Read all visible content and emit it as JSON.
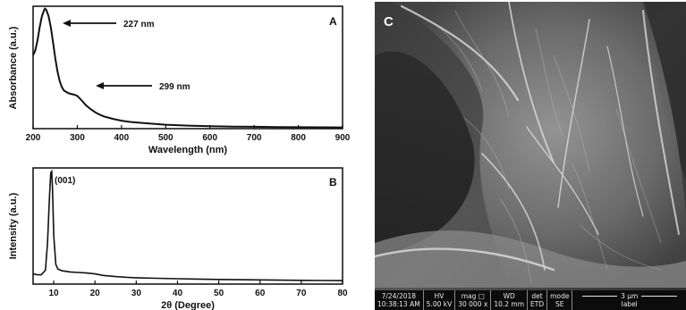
{
  "chart_data": [
    {
      "type": "line",
      "panel": "A",
      "xlabel": "Wavelength (nm)",
      "ylabel": "Absorbance (a.u.)",
      "xlim": [
        200,
        900
      ],
      "xticks": [
        200,
        300,
        400,
        500,
        600,
        700,
        800,
        900
      ],
      "yticks_shown": false,
      "series": [
        {
          "x": [
            200,
            205,
            210,
            215,
            220,
            225,
            227,
            230,
            235,
            240,
            245,
            250,
            255,
            260,
            265,
            270,
            275,
            280,
            285,
            290,
            295,
            299,
            305,
            310,
            320,
            330,
            340,
            350,
            360,
            380,
            400,
            420,
            450,
            500,
            550,
            600,
            650,
            700,
            750,
            800,
            850,
            900
          ],
          "y": [
            0.6,
            0.64,
            0.72,
            0.83,
            0.92,
            0.97,
            0.98,
            0.97,
            0.92,
            0.83,
            0.71,
            0.58,
            0.47,
            0.39,
            0.34,
            0.31,
            0.3,
            0.29,
            0.285,
            0.28,
            0.275,
            0.27,
            0.25,
            0.23,
            0.19,
            0.16,
            0.135,
            0.115,
            0.1,
            0.08,
            0.065,
            0.055,
            0.045,
            0.032,
            0.025,
            0.02,
            0.017,
            0.015,
            0.013,
            0.012,
            0.011,
            0.01
          ]
        }
      ],
      "annotations": [
        {
          "text": "227 nm",
          "x": 227
        },
        {
          "text": "299 nm",
          "x": 299
        }
      ]
    },
    {
      "type": "line",
      "panel": "B",
      "xlabel": "2θ (Degree)",
      "ylabel": "Intensity (a.u.)",
      "xlim": [
        5,
        80
      ],
      "xticks": [
        10,
        20,
        30,
        40,
        50,
        60,
        70,
        80
      ],
      "yticks_shown": false,
      "series": [
        {
          "x": [
            5,
            6,
            7,
            8,
            8.5,
            9,
            9.3,
            9.5,
            9.7,
            10,
            10.5,
            11,
            12,
            14,
            16,
            18,
            20,
            22,
            25,
            28,
            30,
            35,
            40,
            45,
            50,
            55,
            60,
            65,
            70,
            75,
            80
          ],
          "y": [
            0.09,
            0.08,
            0.08,
            0.12,
            0.35,
            0.78,
            0.96,
            0.97,
            0.82,
            0.42,
            0.17,
            0.13,
            0.115,
            0.105,
            0.1,
            0.095,
            0.088,
            0.075,
            0.065,
            0.058,
            0.055,
            0.05,
            0.046,
            0.043,
            0.04,
            0.038,
            0.036,
            0.034,
            0.032,
            0.031,
            0.03
          ]
        }
      ],
      "annotations": [
        {
          "text": "(001)",
          "x": 9.5
        }
      ]
    }
  ],
  "sem": {
    "label": "C",
    "info": {
      "date": "7/24/2018",
      "time": "10:38:13 AM",
      "hv_head": "HV",
      "hv": "5.00 kV",
      "mag_head": "mag □",
      "mag": "30 000 x",
      "wd_head": "WD",
      "wd": "10.2 mm",
      "det_head": "det",
      "det": "ETD",
      "mode_head": "mode",
      "mode": "SE",
      "scale": "3 μm",
      "label_text": "label"
    }
  }
}
